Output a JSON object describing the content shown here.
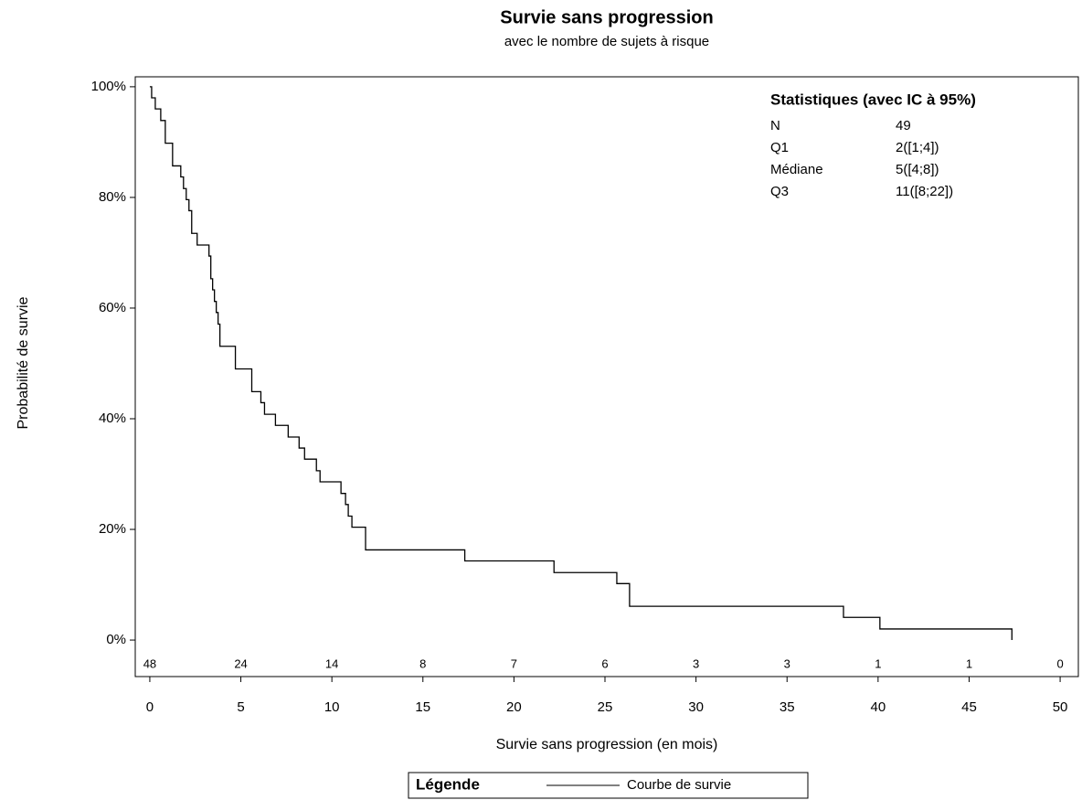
{
  "chart_data": {
    "type": "step",
    "title": "Survie sans progression",
    "subtitle": "avec le nombre de sujets à risque",
    "x_label": "Survie sans progression (en mois)",
    "y_label": "Probabilité de survie",
    "xlim": [
      -0.8,
      51
    ],
    "ylim": [
      -6.6,
      101.8
    ],
    "xticks": [
      0,
      5,
      10,
      15,
      20,
      25,
      30,
      35,
      40,
      45,
      50
    ],
    "yticks": [
      {
        "value": 0,
        "label": "0%"
      },
      {
        "value": 20,
        "label": "20%"
      },
      {
        "value": 40,
        "label": "40%"
      },
      {
        "value": 60,
        "label": "60%"
      },
      {
        "value": 80,
        "label": "80%"
      },
      {
        "value": 100,
        "label": "100%"
      }
    ],
    "x": [
      0,
      0.1,
      0.3,
      0.6,
      0.85,
      1.25,
      1.7,
      1.85,
      2.0,
      2.15,
      2.3,
      2.6,
      3.25,
      3.35,
      3.45,
      3.55,
      3.65,
      3.75,
      3.85,
      4.7,
      5.6,
      6.1,
      6.3,
      6.9,
      7.6,
      8.2,
      8.5,
      9.15,
      9.35,
      10.5,
      10.75,
      10.9,
      11.1,
      11.85,
      17.3,
      22.2,
      25.65,
      26.35,
      38.1,
      40.1,
      47.35
    ],
    "series": [
      {
        "name": "Courbe de survie",
        "color": "#000000",
        "values": [
          100,
          98,
          96,
          93.9,
          89.8,
          85.7,
          83.7,
          81.6,
          79.6,
          77.6,
          73.5,
          71.4,
          69.4,
          65.3,
          63.3,
          61.2,
          59.2,
          57.1,
          53.1,
          49,
          44.9,
          42.9,
          40.8,
          38.8,
          36.7,
          34.7,
          32.7,
          30.6,
          28.6,
          26.5,
          24.5,
          22.4,
          20.4,
          16.3,
          14.3,
          12.2,
          10.2,
          6.1,
          4.1,
          2,
          0
        ]
      }
    ],
    "at_risk": [
      48,
      24,
      14,
      8,
      7,
      6,
      3,
      3,
      1,
      1,
      0
    ],
    "stats": {
      "title": "Statistiques (avec IC à 95%)",
      "rows": [
        [
          "N",
          "49"
        ],
        [
          "Q1",
          "2([1;4])"
        ],
        [
          "Médiane",
          "5([4;8])"
        ],
        [
          "Q3",
          "11([8;22])"
        ]
      ]
    },
    "legend_title": "Légende"
  }
}
